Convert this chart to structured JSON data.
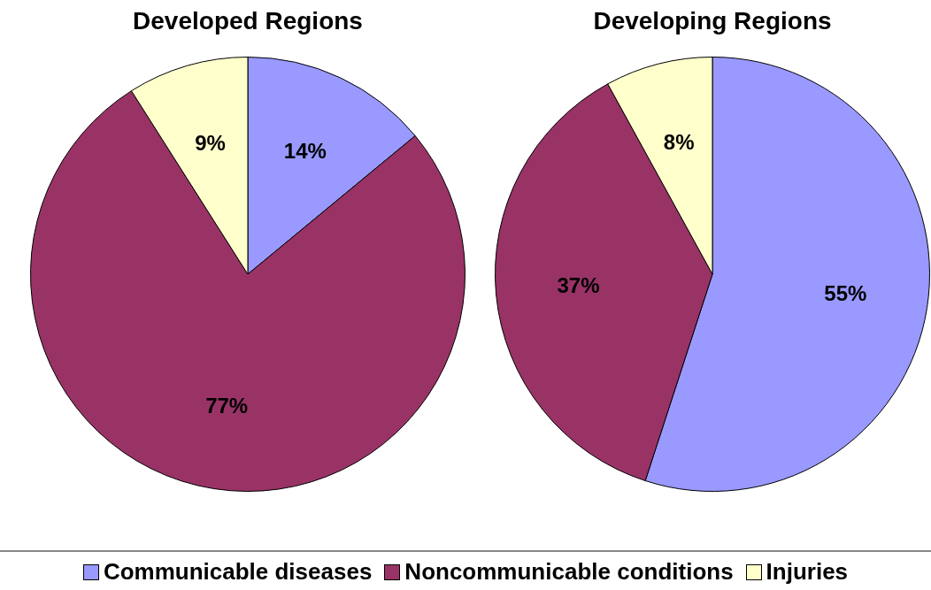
{
  "chart_data": [
    {
      "type": "pie",
      "title": "Developed Regions",
      "categories": [
        "Communicable diseases",
        "Noncommunicable conditions",
        "Injuries"
      ],
      "values": [
        14,
        77,
        9
      ],
      "colors": [
        "#9999ff",
        "#993366",
        "#ffffcc"
      ],
      "value_labels": [
        "14%",
        "77%",
        "9%"
      ],
      "legend": "bottom"
    },
    {
      "type": "pie",
      "title": "Developing Regions",
      "categories": [
        null,
        null,
        null
      ],
      "values": [
        55,
        37,
        8
      ],
      "colors": [
        "#9999ff",
        "#993366",
        "#ffffcc"
      ],
      "value_labels": [
        "55%",
        "37%",
        "8%"
      ]
    }
  ]
}
